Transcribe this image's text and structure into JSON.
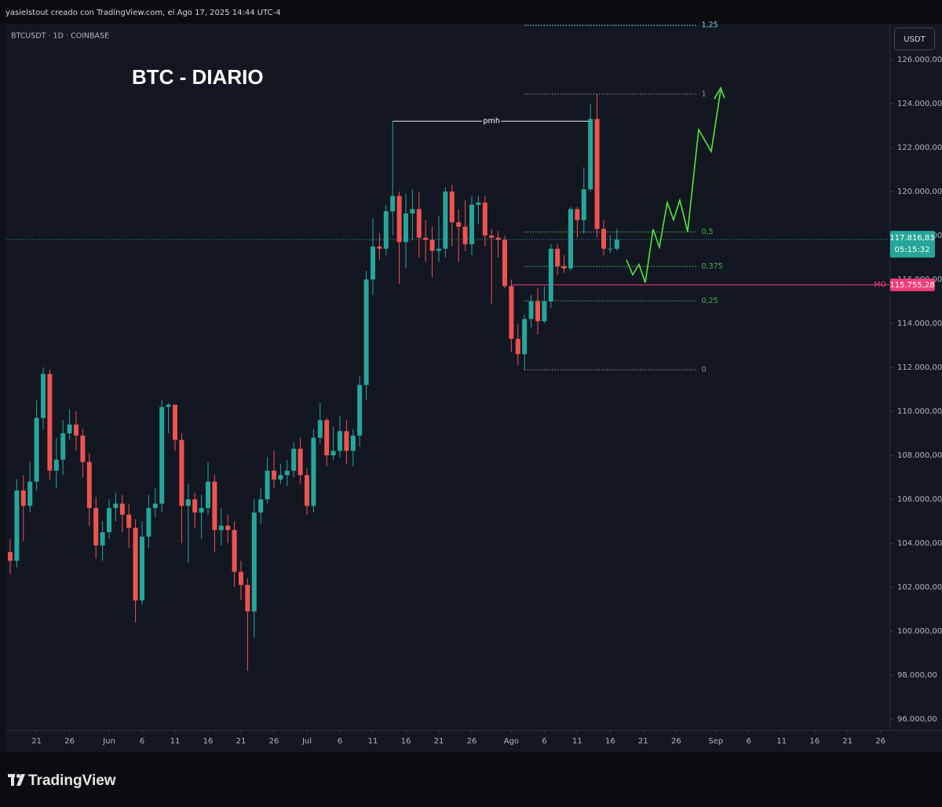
{
  "chart_data": {
    "type": "candlestick",
    "header": "yasielstout creado con TradingView.com, el Ago 17, 2025 14:44 UTC-4",
    "symbol": "BTCUSDT · 1D · COINBASE",
    "title": "BTC - DIARIO",
    "currency": "USDT",
    "brand": "TradingView",
    "up_color": "#26a69a",
    "down_color": "#ef5350",
    "x": [
      "2025-05-17",
      "2025-05-18",
      "2025-05-19",
      "2025-05-20",
      "2025-05-21",
      "2025-05-22",
      "2025-05-23",
      "2025-05-24",
      "2025-05-25",
      "2025-05-26",
      "2025-05-27",
      "2025-05-28",
      "2025-05-29",
      "2025-05-30",
      "2025-05-31",
      "2025-06-01",
      "2025-06-02",
      "2025-06-03",
      "2025-06-04",
      "2025-06-05",
      "2025-06-06",
      "2025-06-07",
      "2025-06-08",
      "2025-06-09",
      "2025-06-10",
      "2025-06-11",
      "2025-06-12",
      "2025-06-13",
      "2025-06-14",
      "2025-06-15",
      "2025-06-16",
      "2025-06-17",
      "2025-06-18",
      "2025-06-19",
      "2025-06-20",
      "2025-06-21",
      "2025-06-22",
      "2025-06-23",
      "2025-06-24",
      "2025-06-25",
      "2025-06-26",
      "2025-06-27",
      "2025-06-28",
      "2025-06-29",
      "2025-06-30",
      "2025-07-01",
      "2025-07-02",
      "2025-07-03",
      "2025-07-04",
      "2025-07-05",
      "2025-07-06",
      "2025-07-07",
      "2025-07-08",
      "2025-07-09",
      "2025-07-10",
      "2025-07-11",
      "2025-07-12",
      "2025-07-13",
      "2025-07-14",
      "2025-07-15",
      "2025-07-16",
      "2025-07-17",
      "2025-07-18",
      "2025-07-19",
      "2025-07-20",
      "2025-07-21",
      "2025-07-22",
      "2025-07-23",
      "2025-07-24",
      "2025-07-25",
      "2025-07-26",
      "2025-07-27",
      "2025-07-28",
      "2025-07-29",
      "2025-07-30",
      "2025-07-31",
      "2025-08-01",
      "2025-08-02",
      "2025-08-03",
      "2025-08-04",
      "2025-08-05",
      "2025-08-06",
      "2025-08-07",
      "2025-08-08",
      "2025-08-09",
      "2025-08-10",
      "2025-08-11",
      "2025-08-12",
      "2025-08-13",
      "2025-08-14",
      "2025-08-15",
      "2025-08-16",
      "2025-08-17"
    ],
    "open": [
      103600,
      103200,
      106400,
      105700,
      106800,
      109700,
      111700,
      107300,
      107800,
      109000,
      109400,
      108900,
      107700,
      105600,
      103900,
      104500,
      105600,
      105800,
      105300,
      104700,
      101400,
      104300,
      105600,
      105800,
      110200,
      110300,
      108700,
      105700,
      106000,
      105400,
      105600,
      106800,
      104600,
      104800,
      104600,
      102700,
      102100,
      100900,
      105400,
      106000,
      107300,
      106900,
      107100,
      107300,
      108300,
      107100,
      105700,
      108800,
      109600,
      108000,
      108200,
      109100,
      108200,
      108900,
      111200,
      116000,
      117500,
      117400,
      119100,
      119800,
      117700,
      119000,
      119200,
      117900,
      117800,
      117300,
      117400,
      120000,
      118600,
      118400,
      117600,
      119400,
      119500,
      118000,
      117900,
      117800,
      115700,
      113300,
      112600,
      114200,
      115000,
      114100,
      115000,
      117400,
      116600,
      116500,
      119200,
      118700,
      120100,
      123300,
      118300,
      117400,
      117400
    ],
    "high": [
      104200,
      106900,
      107100,
      107700,
      110500,
      112000,
      111900,
      108800,
      109600,
      110100,
      110000,
      109200,
      108100,
      106100,
      105000,
      106000,
      106300,
      106200,
      105800,
      105100,
      105000,
      106200,
      106500,
      110500,
      110400,
      110300,
      109000,
      106700,
      106300,
      106200,
      107700,
      107100,
      105600,
      105300,
      105000,
      103200,
      102400,
      106000,
      106500,
      107900,
      108200,
      107600,
      107800,
      108600,
      108800,
      107400,
      109200,
      110400,
      109700,
      109300,
      109800,
      109600,
      109200,
      111600,
      116400,
      118800,
      118100,
      119400,
      123200,
      120000,
      119900,
      120100,
      120000,
      118700,
      118400,
      118900,
      120200,
      120300,
      119200,
      119600,
      119800,
      119800,
      119800,
      118300,
      118200,
      118000,
      116000,
      114000,
      114400,
      115300,
      115600,
      115700,
      117600,
      117600,
      117100,
      119300,
      119300,
      121100,
      124000,
      124430,
      118700,
      118000,
      118300
    ],
    "low": [
      102600,
      102900,
      104100,
      105400,
      106400,
      109200,
      106900,
      106500,
      107100,
      108700,
      108200,
      107000,
      104800,
      103300,
      103200,
      104200,
      105000,
      104500,
      103800,
      100400,
      101200,
      103800,
      105200,
      105400,
      109000,
      108200,
      104000,
      103100,
      104700,
      104200,
      105300,
      103600,
      103900,
      104000,
      102000,
      101400,
      98200,
      99700,
      104900,
      105800,
      106500,
      106700,
      106600,
      107000,
      106700,
      105300,
      105400,
      108500,
      107500,
      107800,
      107900,
      107600,
      107500,
      108400,
      110500,
      115300,
      116900,
      117100,
      118000,
      115800,
      116500,
      117800,
      117000,
      116800,
      116100,
      116800,
      117000,
      117500,
      116800,
      117300,
      117100,
      118500,
      117500,
      114900,
      117000,
      115600,
      112700,
      112100,
      111890,
      113800,
      113500,
      114000,
      114700,
      116200,
      116300,
      116400,
      117900,
      118100,
      120000,
      117900,
      117100,
      117200,
      117300
    ],
    "close": [
      103200,
      106400,
      105700,
      106800,
      109700,
      111700,
      107300,
      107800,
      109000,
      109400,
      108900,
      107700,
      105600,
      103900,
      104500,
      105600,
      105800,
      105300,
      104700,
      101400,
      104300,
      105600,
      105800,
      110200,
      110300,
      108700,
      105700,
      106000,
      105400,
      105600,
      106800,
      104600,
      104800,
      104600,
      102700,
      102100,
      100900,
      105400,
      106000,
      107300,
      106900,
      107100,
      107300,
      108300,
      107100,
      105700,
      108800,
      109600,
      108000,
      108200,
      109100,
      108200,
      108900,
      111200,
      116000,
      117500,
      117400,
      119100,
      119800,
      117700,
      119000,
      119200,
      117900,
      117800,
      117300,
      117400,
      120000,
      118600,
      118400,
      117600,
      119400,
      119500,
      118000,
      117900,
      117800,
      115700,
      113300,
      112600,
      114200,
      115000,
      114100,
      115000,
      117400,
      116600,
      116500,
      119200,
      118700,
      120100,
      123300,
      118300,
      117400,
      117400,
      117816.83
    ],
    "xlim": [
      "2025-05-16",
      "2025-09-27"
    ],
    "xticks": [
      {
        "value": "2025-05-21",
        "label": "21"
      },
      {
        "value": "2025-05-26",
        "label": "26"
      },
      {
        "value": "2025-06-01",
        "label": "Jun"
      },
      {
        "value": "2025-06-06",
        "label": "6"
      },
      {
        "value": "2025-06-11",
        "label": "11"
      },
      {
        "value": "2025-06-16",
        "label": "16"
      },
      {
        "value": "2025-06-21",
        "label": "21"
      },
      {
        "value": "2025-06-26",
        "label": "26"
      },
      {
        "value": "2025-07-01",
        "label": "Jul"
      },
      {
        "value": "2025-07-06",
        "label": "6"
      },
      {
        "value": "2025-07-11",
        "label": "11"
      },
      {
        "value": "2025-07-16",
        "label": "16"
      },
      {
        "value": "2025-07-21",
        "label": "21"
      },
      {
        "value": "2025-07-26",
        "label": "26"
      },
      {
        "value": "2025-08-01",
        "label": "Ago"
      },
      {
        "value": "2025-08-06",
        "label": "6"
      },
      {
        "value": "2025-08-11",
        "label": "11"
      },
      {
        "value": "2025-08-16",
        "label": "16"
      },
      {
        "value": "2025-08-21",
        "label": "21"
      },
      {
        "value": "2025-08-26",
        "label": "26"
      },
      {
        "value": "2025-09-01",
        "label": "Sep"
      },
      {
        "value": "2025-09-06",
        "label": "6"
      },
      {
        "value": "2025-09-11",
        "label": "11"
      },
      {
        "value": "2025-09-16",
        "label": "16"
      },
      {
        "value": "2025-09-21",
        "label": "21"
      },
      {
        "value": "2025-09-26",
        "label": "26"
      }
    ],
    "ylim": [
      95500,
      127600
    ],
    "yticks": [
      {
        "value": 96000,
        "label": "96.000,00"
      },
      {
        "value": 98000,
        "label": "98.000,00"
      },
      {
        "value": 100000,
        "label": "100.000,00"
      },
      {
        "value": 102000,
        "label": "102.000,00"
      },
      {
        "value": 104000,
        "label": "104.000,00"
      },
      {
        "value": 106000,
        "label": "106.000,00"
      },
      {
        "value": 108000,
        "label": "108.000,00"
      },
      {
        "value": 110000,
        "label": "110.000,00"
      },
      {
        "value": 112000,
        "label": "112.000,00"
      },
      {
        "value": 114000,
        "label": "114.000,00"
      },
      {
        "value": 116000,
        "label": "116.000,00"
      },
      {
        "value": 118000,
        "label": "118.000,00"
      },
      {
        "value": 120000,
        "label": "120.000,00"
      },
      {
        "value": 122000,
        "label": "122.000,00"
      },
      {
        "value": 124000,
        "label": "124.000,00"
      },
      {
        "value": 126000,
        "label": "126.000,00"
      }
    ],
    "last_price": {
      "value": 117816.83,
      "label": "117.816,83",
      "countdown": "05:15:32",
      "color": "#26a69a"
    },
    "mo_line": {
      "name": "MO",
      "value": 115755.28,
      "label": "115.755,28",
      "start": "2025-08-01",
      "color": "#f23d7a"
    },
    "pmh": {
      "label": "pmh",
      "value": 123200,
      "start": "2025-07-14",
      "end": "2025-08-13"
    },
    "fib": {
      "start": "2025-08-03",
      "end": "2025-08-29",
      "levels": [
        {
          "label": "1,25",
          "value": 127565,
          "color": "#7ad3e6"
        },
        {
          "label": "1",
          "value": 124430,
          "color": "#8a8f99"
        },
        {
          "label": "0,5",
          "value": 118160,
          "color": "#4caf50"
        },
        {
          "label": "0,375",
          "value": 116593,
          "color": "#4caf50"
        },
        {
          "label": "0,25",
          "value": 115025,
          "color": "#4caf50"
        },
        {
          "label": "0",
          "value": 111890,
          "color": "#8a8f99"
        }
      ]
    }
  }
}
